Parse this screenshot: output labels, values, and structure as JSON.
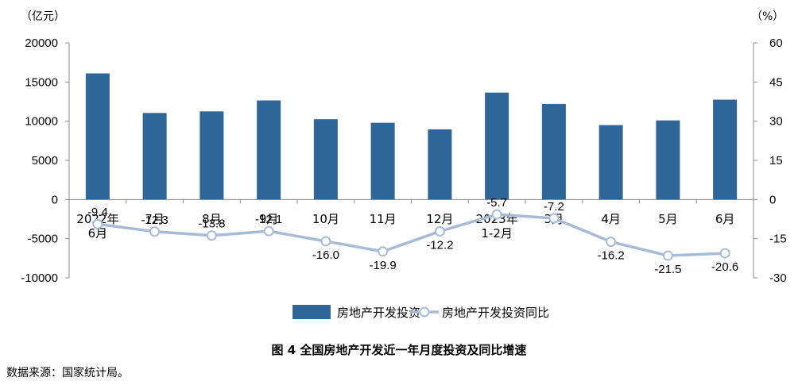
{
  "chart_data": {
    "type": "bar",
    "categories": [
      [
        "2022年",
        "6月"
      ],
      [
        "7月"
      ],
      [
        "8月"
      ],
      [
        "9月"
      ],
      [
        "10月"
      ],
      [
        "11月"
      ],
      [
        "12月"
      ],
      [
        "2023年",
        "1-2月"
      ],
      [
        "3月"
      ],
      [
        "4月"
      ],
      [
        "5月"
      ],
      [
        "6月"
      ]
    ],
    "series": [
      {
        "name": "房地产开发投资",
        "type": "bar",
        "axis": "left",
        "color": "#2e6699",
        "values": [
          16100,
          11050,
          11250,
          12650,
          10250,
          9800,
          8950,
          13650,
          12200,
          9500,
          10100,
          12750
        ]
      },
      {
        "name": "房地产开发投资同比",
        "type": "line",
        "axis": "right",
        "color": "#a6bcd6",
        "values": [
          -9.4,
          -12.3,
          -13.8,
          -12.1,
          -16.0,
          -19.9,
          -12.2,
          -5.7,
          -7.2,
          -16.2,
          -21.5,
          -20.6
        ],
        "labels": [
          "-9.4",
          "-12.3",
          "-13.8",
          "-12.1",
          "-16.0",
          "-19.9",
          "-12.2",
          "-5.7",
          "-7.2",
          "-16.2",
          "-21.5",
          "-20.6"
        ]
      }
    ],
    "left_axis": {
      "unit": "（亿元）",
      "ylim": [
        -10000,
        20000
      ],
      "ticks": [
        20000,
        15000,
        10000,
        5000,
        0,
        -5000,
        -10000
      ],
      "tick_labels": [
        "20000",
        "15000",
        "10000",
        "5000",
        "0",
        "-5000",
        "-10000"
      ]
    },
    "right_axis": {
      "unit": "（%）",
      "ylim": [
        -30,
        60
      ],
      "ticks": [
        60,
        45,
        30,
        15,
        0,
        -15,
        -30
      ],
      "tick_labels": [
        "60",
        "45",
        "30",
        "15",
        "0",
        "-15",
        "-30"
      ]
    },
    "grid": false,
    "legend_position": "bottom"
  },
  "caption": "图 4    全国房地产开发近一年月度投资及同比增速",
  "source": "数据来源：国家统计局。"
}
